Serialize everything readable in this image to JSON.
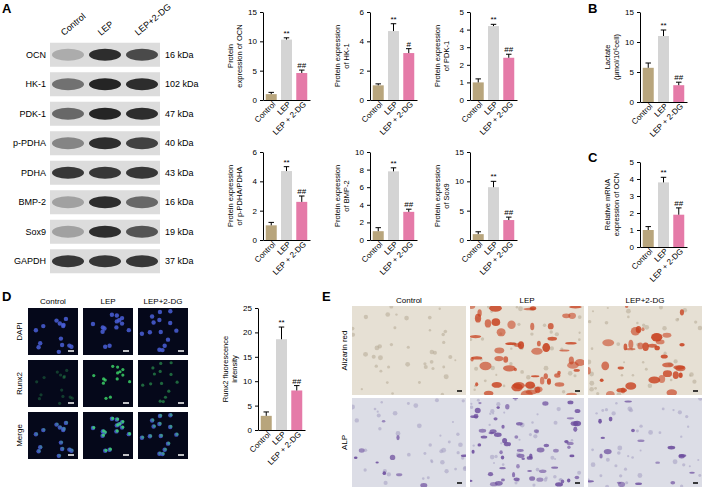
{
  "panel_labels": [
    "A",
    "B",
    "C",
    "D",
    "E"
  ],
  "blot": {
    "lanes": [
      "Control",
      "LEP",
      "LEP+2-DG"
    ],
    "proteins": [
      "OCN",
      "HK-1",
      "PDK-1",
      "p-PDHA",
      "PDHA",
      "BMP-2",
      "Sox9",
      "GAPDH"
    ],
    "sizes": [
      "16 kDa",
      "102 kDa",
      "47 kDa",
      "40 kDa",
      "43 kDa",
      "16 kDa",
      "19 kDa",
      "37 kDa"
    ]
  },
  "chart_data": [
    {
      "type": "bar",
      "y_label": "Protein expression of OCN",
      "categories": [
        "Control",
        "LEP",
        "LEP + 2-DG"
      ],
      "values": [
        1.0,
        10.3,
        4.6
      ],
      "errors": [
        0.3,
        0.3,
        0.5
      ],
      "colors": [
        "#b8a57c",
        "#d4d4d4",
        "#e57aa8"
      ],
      "significance": [
        null,
        "**",
        "##"
      ],
      "ylim": [
        0,
        15
      ],
      "yticks": [
        0,
        5,
        10,
        15
      ]
    },
    {
      "type": "bar",
      "y_label": "Protein expression of HK-1",
      "categories": [
        "Control",
        "LEP",
        "LEP + 2-DG"
      ],
      "values": [
        1.0,
        4.7,
        3.2
      ],
      "errors": [
        0.1,
        0.5,
        0.3
      ],
      "colors": [
        "#b8a57c",
        "#d4d4d4",
        "#e57aa8"
      ],
      "significance": [
        null,
        "**",
        "#"
      ],
      "ylim": [
        0,
        6
      ],
      "yticks": [
        0,
        2,
        4,
        6
      ]
    },
    {
      "type": "bar",
      "y_label": "Protein expression of PDK-1",
      "categories": [
        "Control",
        "LEP",
        "LEP + 2-DG"
      ],
      "values": [
        1.0,
        4.2,
        2.4
      ],
      "errors": [
        0.2,
        0.1,
        0.2
      ],
      "colors": [
        "#b8a57c",
        "#d4d4d4",
        "#e57aa8"
      ],
      "significance": [
        null,
        "**",
        "##"
      ],
      "ylim": [
        0,
        5
      ],
      "yticks": [
        0,
        1,
        2,
        3,
        4,
        5
      ]
    },
    {
      "type": "bar",
      "y_label": "Protein expression of p-PDHA/PDHA",
      "categories": [
        "Control",
        "LEP",
        "LEP + 2-DG"
      ],
      "values": [
        1.0,
        4.7,
        2.6
      ],
      "errors": [
        0.2,
        0.3,
        0.4
      ],
      "colors": [
        "#b8a57c",
        "#d4d4d4",
        "#e57aa8"
      ],
      "significance": [
        null,
        "**",
        "##"
      ],
      "ylim": [
        0,
        6
      ],
      "yticks": [
        0,
        2,
        4,
        6
      ]
    },
    {
      "type": "bar",
      "y_label": "Protein expression of BMP-2",
      "categories": [
        "Control",
        "LEP",
        "LEP + 2-DG"
      ],
      "values": [
        1.0,
        7.8,
        3.2
      ],
      "errors": [
        0.4,
        0.4,
        0.3
      ],
      "colors": [
        "#b8a57c",
        "#d4d4d4",
        "#e57aa8"
      ],
      "significance": [
        null,
        "**",
        "##"
      ],
      "ylim": [
        0,
        10
      ],
      "yticks": [
        0,
        2,
        4,
        6,
        8,
        10
      ]
    },
    {
      "type": "bar",
      "y_label": "Protein expression of Sox9",
      "categories": [
        "Control",
        "LEP",
        "LEP + 2-DG"
      ],
      "values": [
        1.0,
        9.0,
        3.4
      ],
      "errors": [
        0.4,
        1.0,
        0.5
      ],
      "colors": [
        "#b8a57c",
        "#d4d4d4",
        "#e57aa8"
      ],
      "significance": [
        null,
        "**",
        "##"
      ],
      "ylim": [
        0,
        15
      ],
      "yticks": [
        0,
        5,
        10,
        15
      ]
    },
    {
      "type": "bar",
      "y_label": "Lactate (μmol/10⁶cell)",
      "categories": [
        "Control",
        "LEP",
        "LEP + 2-DG"
      ],
      "values": [
        5.7,
        11.0,
        2.8
      ],
      "errors": [
        0.8,
        1.0,
        0.5
      ],
      "colors": [
        "#b8a57c",
        "#d4d4d4",
        "#e57aa8"
      ],
      "significance": [
        null,
        "**",
        "##"
      ],
      "ylim": [
        0,
        15
      ],
      "yticks": [
        0,
        5,
        10,
        15
      ]
    },
    {
      "type": "bar",
      "y_label": "Relative mRNA expression of OCN",
      "categories": [
        "Control",
        "LEP",
        "LEP + 2-DG"
      ],
      "values": [
        1.0,
        3.8,
        1.9
      ],
      "errors": [
        0.2,
        0.3,
        0.4
      ],
      "colors": [
        "#b8a57c",
        "#d4d4d4",
        "#e57aa8"
      ],
      "significance": [
        null,
        "**",
        "##"
      ],
      "ylim": [
        0,
        5
      ],
      "yticks": [
        0,
        1,
        2,
        3,
        4,
        5
      ]
    },
    {
      "type": "bar",
      "y_label": "Runx2 fluorescence intensity",
      "categories": [
        "Control",
        "LEP",
        "LEP + 2-DG"
      ],
      "values": [
        2.9,
        18.6,
        8.1
      ],
      "errors": [
        0.8,
        2.5,
        1.0
      ],
      "colors": [
        "#b8a57c",
        "#d4d4d4",
        "#e57aa8"
      ],
      "significance": [
        null,
        "**",
        "##"
      ],
      "ylim": [
        0,
        25
      ],
      "yticks": [
        0,
        5,
        10,
        15,
        20,
        25
      ]
    }
  ],
  "fluorescence": {
    "columns": [
      "Control",
      "LEP",
      "LEP+2-DG"
    ],
    "rows": [
      "DAPI",
      "Runx2",
      "Merge"
    ]
  },
  "staining": {
    "columns": [
      "Control",
      "LEP",
      "LEP+2-DG"
    ],
    "rows": [
      "Alizarin red",
      "ALP"
    ]
  }
}
